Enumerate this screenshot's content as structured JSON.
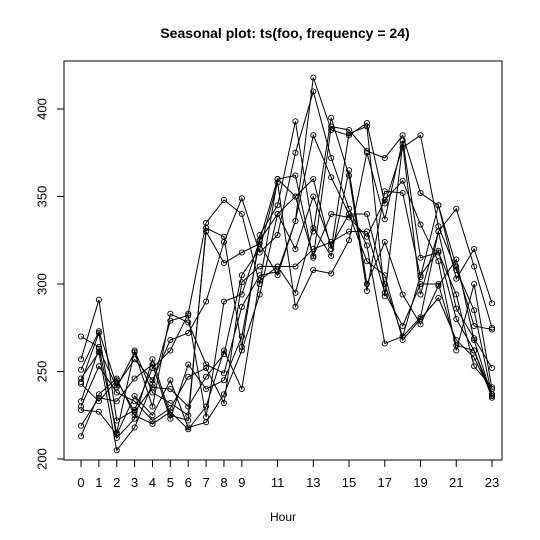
{
  "chart_data": {
    "type": "line",
    "title": "Seasonal plot: ts(foo, frequency = 24)",
    "xlabel": "Hour",
    "ylabel": "",
    "xlim": [
      -0.5,
      23.5
    ],
    "ylim": [
      200,
      425
    ],
    "x_ticks": [
      0,
      1,
      2,
      3,
      4,
      5,
      6,
      7,
      8,
      9,
      11,
      13,
      15,
      17,
      19,
      21,
      23
    ],
    "x_tick_labels": [
      "0",
      "1",
      "2",
      "3",
      "4",
      "5",
      "6",
      "7",
      "8",
      "9",
      "11",
      "13",
      "15",
      "17",
      "19",
      "21",
      "23"
    ],
    "y_ticks": [
      200,
      250,
      300,
      350,
      400
    ],
    "y_tick_labels": [
      "200",
      "250",
      "300",
      "350",
      "400"
    ],
    "x": [
      0,
      1,
      2,
      3,
      4,
      5,
      6,
      7,
      8,
      9,
      10,
      11,
      12,
      13,
      14,
      15,
      16,
      17,
      18,
      19,
      20,
      21,
      22,
      23
    ],
    "marker": "open-circle",
    "line_color": "#000000",
    "series": [
      {
        "values": [
          270,
          264,
          215,
          262,
          238,
          232,
          225,
          330,
          312,
          318,
          323,
          305,
          336,
          418,
          388,
          385,
          392,
          346,
          378,
          385,
          333,
          308,
          285,
          236
        ]
      },
      {
        "values": [
          257,
          291,
          222,
          228,
          252,
          262,
          283,
          335,
          348,
          340,
          300,
          360,
          362,
          315,
          390,
          388,
          376,
          372,
          385,
          352,
          345,
          303,
          320,
          289
        ]
      },
      {
        "values": [
          251,
          273,
          242,
          257,
          245,
          268,
          272,
          290,
          324,
          349,
          318,
          328,
          375,
          410,
          372,
          343,
          322,
          266,
          270,
          281,
          330,
          343,
          310,
          275
        ]
      },
      {
        "values": [
          244,
          272,
          212,
          223,
          257,
          225,
          222,
          332,
          327,
          264,
          328,
          345,
          393,
          330,
          395,
          362,
          296,
          353,
          352,
          304,
          345,
          310,
          276,
          274
        ]
      },
      {
        "values": [
          246,
          261,
          205,
          218,
          243,
          279,
          282,
          224,
          290,
          294,
          325,
          360,
          350,
          360,
          320,
          386,
          390,
          293,
          380,
          294,
          330,
          286,
          269,
          252
        ]
      },
      {
        "values": [
          233,
          263,
          241,
          261,
          230,
          283,
          278,
          254,
          249,
          287,
          305,
          307,
          336,
          385,
          361,
          340,
          340,
          300,
          270,
          305,
          319,
          280,
          262,
          237
        ]
      },
      {
        "values": [
          230,
          253,
          238,
          233,
          222,
          229,
          247,
          252,
          232,
          301,
          310,
          310,
          295,
          332,
          316,
          365,
          300,
          324,
          294,
          277,
          299,
          314,
          268,
          236
        ]
      },
      {
        "values": [
          219,
          235,
          233,
          246,
          254,
          223,
          254,
          240,
          245,
          270,
          325,
          340,
          350,
          316,
          340,
          338,
          327,
          348,
          359,
          334,
          313,
          262,
          300,
          240
        ]
      },
      {
        "values": [
          243,
          233,
          245,
          227,
          241,
          240,
          230,
          247,
          260,
          305,
          320,
          358,
          287,
          308,
          306,
          325,
          375,
          337,
          382,
          315,
          318,
          294,
          253,
          241
        ]
      },
      {
        "values": [
          228,
          227,
          214,
          236,
          225,
          245,
          218,
          221,
          237,
          262,
          294,
          340,
          320,
          350,
          322,
          340,
          313,
          305,
          268,
          280,
          292,
          268,
          258,
          237
        ]
      },
      {
        "values": [
          213,
          237,
          246,
          225,
          220,
          227,
          217,
          230,
          262,
          240,
          302,
          310,
          310,
          320,
          324,
          330,
          330,
          295,
          276,
          300,
          300,
          265,
          262,
          235
        ]
      }
    ]
  }
}
